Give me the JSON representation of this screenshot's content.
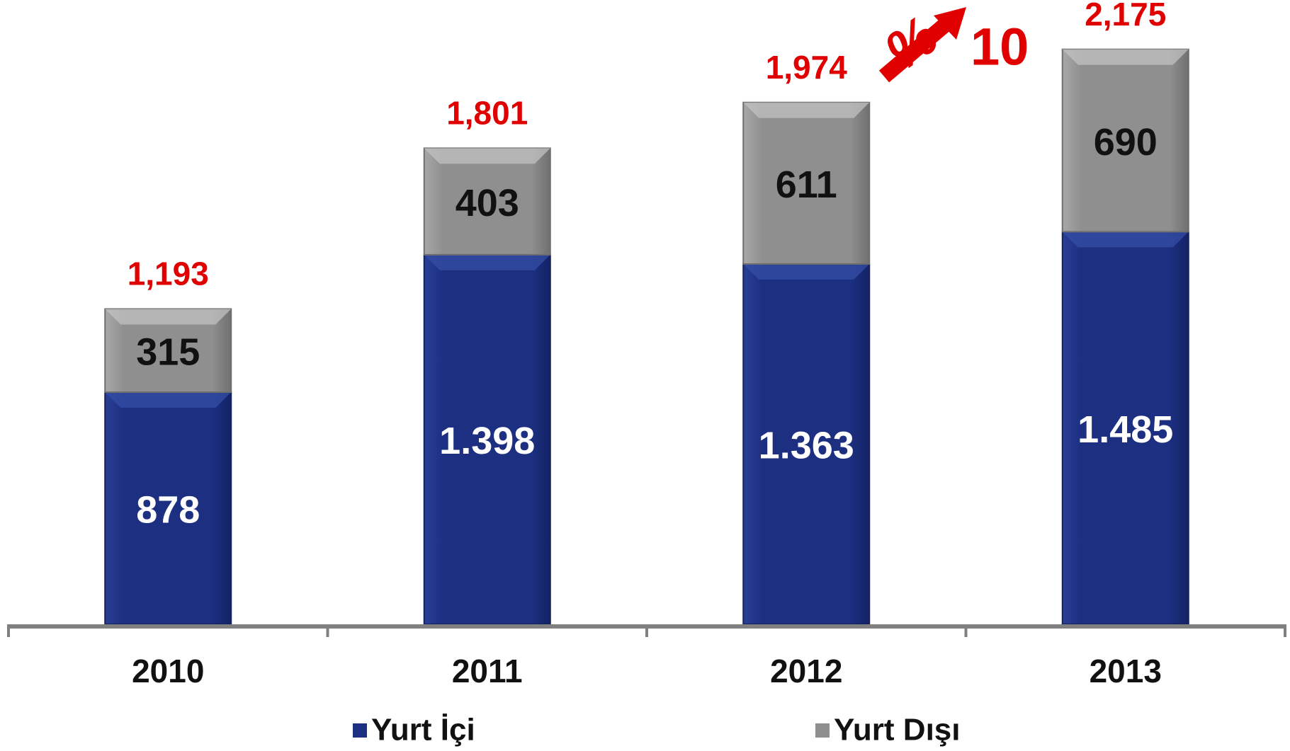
{
  "chart_data": {
    "type": "stacked_bar",
    "categories": [
      "2010",
      "2011",
      "2012",
      "2013"
    ],
    "series": [
      {
        "name": "Yurt İçi",
        "color": "#1c2f80",
        "values": [
          878,
          1398,
          1363,
          1485
        ],
        "value_labels": [
          "878",
          "1.398",
          "1.363",
          "1.485"
        ]
      },
      {
        "name": "Yurt Dışı",
        "color": "#8f8f8f",
        "values": [
          315,
          403,
          611,
          690
        ]
      }
    ],
    "totals": [
      1193,
      1801,
      1974,
      2175
    ],
    "total_labels": [
      "1,193",
      "1,801",
      "1,974",
      "2,175"
    ],
    "annotations": [
      "%",
      "10"
    ],
    "ylim": [
      0,
      2300
    ],
    "legend": "bottom"
  }
}
